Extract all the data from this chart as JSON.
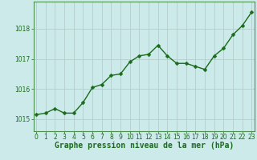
{
  "x": [
    0,
    1,
    2,
    3,
    4,
    5,
    6,
    7,
    8,
    9,
    10,
    11,
    12,
    13,
    14,
    15,
    16,
    17,
    18,
    19,
    20,
    21,
    22,
    23
  ],
  "y": [
    1015.15,
    1015.2,
    1015.35,
    1015.2,
    1015.2,
    1015.55,
    1016.05,
    1016.15,
    1016.45,
    1016.5,
    1016.9,
    1017.1,
    1017.15,
    1017.45,
    1017.1,
    1016.85,
    1016.85,
    1016.75,
    1016.65,
    1017.1,
    1017.35,
    1017.8,
    1018.1,
    1018.55
  ],
  "line_color": "#1a6b1a",
  "marker": "D",
  "marker_size": 2.5,
  "bg_color": "#cceaea",
  "grid_color": "#b0c8c8",
  "xlabel": "Graphe pression niveau de la mer (hPa)",
  "xlabel_fontsize": 7,
  "yticks": [
    1015,
    1016,
    1017,
    1018
  ],
  "xticks": [
    0,
    1,
    2,
    3,
    4,
    5,
    6,
    7,
    8,
    9,
    10,
    11,
    12,
    13,
    14,
    15,
    16,
    17,
    18,
    19,
    20,
    21,
    22,
    23
  ],
  "ylim": [
    1014.6,
    1018.9
  ],
  "xlim": [
    -0.3,
    23.3
  ],
  "tick_fontsize": 5.5,
  "line_width": 1.0,
  "axis_color": "#2d6a2d",
  "spine_color": "#4d8f4d"
}
